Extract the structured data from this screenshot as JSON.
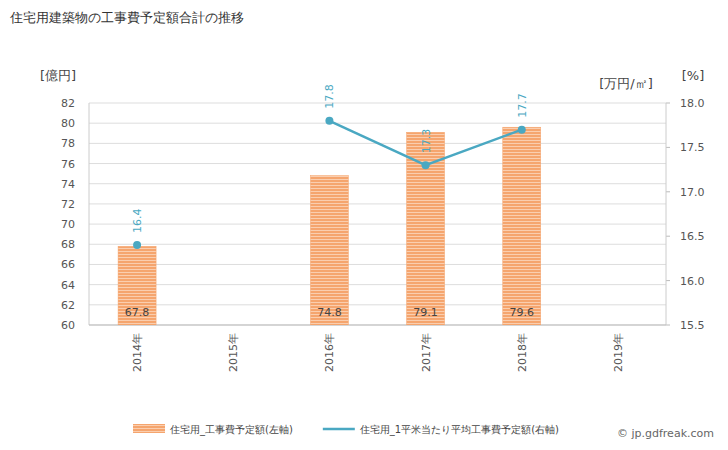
{
  "chart_data": {
    "type": "bar",
    "title": "住宅用建築物の工事費予定額合計の推移",
    "y_label": "[億円]",
    "y2_labels": [
      "[万円/㎡]",
      "[%]"
    ],
    "source": "© jp.gdfreak.com",
    "categories": [
      "2014年",
      "2015年",
      "2016年",
      "2017年",
      "2018年",
      "2019年"
    ],
    "series": [
      {
        "name": "住宅用_工事費予定額(左軸)",
        "type": "bar",
        "color": "#f5a56e",
        "values": [
          67.8,
          null,
          74.8,
          79.1,
          79.6,
          null
        ]
      },
      {
        "name": "住宅用_1平米当たり平均工事費予定額(右軸)",
        "type": "line",
        "axis": "y2",
        "color": "#4aa8c2",
        "marker": "circle",
        "values": [
          16.4,
          null,
          17.8,
          17.3,
          17.7,
          null
        ]
      }
    ],
    "ylim": [
      60,
      82
    ],
    "yticks": [
      60,
      62,
      64,
      66,
      68,
      70,
      72,
      74,
      76,
      78,
      80,
      82
    ],
    "y2lim": [
      15.5,
      18.0
    ],
    "y2ticks": [
      15.5,
      {
        "value": 16,
        "label": "16.0"
      },
      16.5,
      {
        "value": 17,
        "label": "17.0"
      },
      17.5,
      {
        "value": 18,
        "label": "18.0"
      }
    ],
    "grid": true,
    "legend": "bottom",
    "data_labels": true
  }
}
